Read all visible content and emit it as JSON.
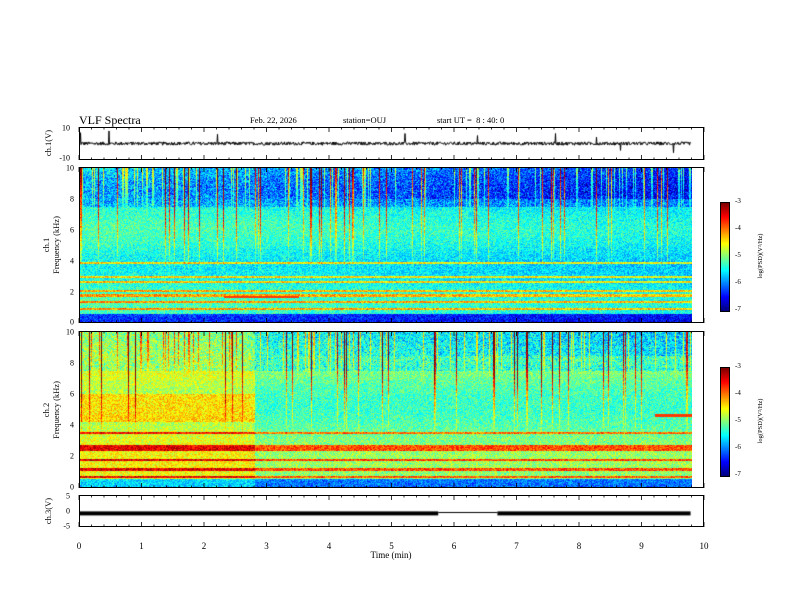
{
  "header": {
    "title": "VLF Spectra",
    "date": "Feb. 22, 2026",
    "station_label": "station=",
    "station": "OUJ",
    "start_label": "start UT =",
    "start_time": "8 : 40: 0"
  },
  "chart_data": [
    {
      "type": "line",
      "name": "ch1-waveform",
      "ylabel": "ch.1(V)",
      "ylim": [
        -10,
        10
      ],
      "y_ticks": [
        "10",
        "-10"
      ],
      "baseline": 0
    },
    {
      "type": "heatmap",
      "name": "ch1-spectrogram",
      "ylabel_line1": "ch.1",
      "ylabel_line2": "Frequency (kHz)",
      "ylim": [
        0,
        10
      ],
      "y_ticks": [
        "10",
        "8",
        "6",
        "4",
        "2",
        "0"
      ],
      "colorbar": {
        "label": "log(PSD)(V²/Hz)",
        "range": [
          -7,
          -3
        ],
        "ticks": [
          "-3",
          "-4",
          "-5",
          "-6",
          "-7"
        ]
      },
      "bands_khz": [
        0.8,
        1.3,
        1.7,
        2.0,
        2.6,
        2.9,
        3.8
      ],
      "event": {
        "t_start_min": 2.3,
        "t_end_min": 3.5,
        "freq_khz": 1.6
      }
    },
    {
      "type": "heatmap",
      "name": "ch2-spectrogram",
      "ylabel_line1": "ch.2",
      "ylabel_line2": "Frequency (kHz)",
      "ylim": [
        0,
        10
      ],
      "y_ticks": [
        "10",
        "8",
        "6",
        "4",
        "2",
        "0"
      ],
      "colorbar": {
        "label": "log(PSD)(V²/Hz)",
        "range": [
          -7,
          -3
        ],
        "ticks": [
          "-3",
          "-4",
          "-5",
          "-6",
          "-7"
        ]
      },
      "bands_khz": [
        0.6,
        1.1,
        1.7,
        2.4,
        2.6,
        3.5
      ],
      "event": {
        "t_start_min": 9.2,
        "t_end_min": 9.8,
        "freq_khz": 4.6
      }
    },
    {
      "type": "line",
      "name": "ch3-level",
      "ylabel": "ch.3(V)",
      "ylim": [
        -5,
        5
      ],
      "y_ticks": [
        "5",
        "0",
        "-5"
      ],
      "segments": [
        {
          "t_start_min": 0.0,
          "t_end_min": 5.75,
          "value": -0.8
        },
        {
          "t_start_min": 5.75,
          "t_end_min": 6.7,
          "value": -0.5
        },
        {
          "t_start_min": 6.7,
          "t_end_min": 9.8,
          "value": -0.8
        }
      ]
    }
  ],
  "x_axis": {
    "label": "Time (min)",
    "ticks": [
      "0",
      "1",
      "2",
      "3",
      "4",
      "5",
      "6",
      "7",
      "8",
      "9",
      "10"
    ],
    "range": [
      0,
      10
    ],
    "data_end": 9.8
  }
}
